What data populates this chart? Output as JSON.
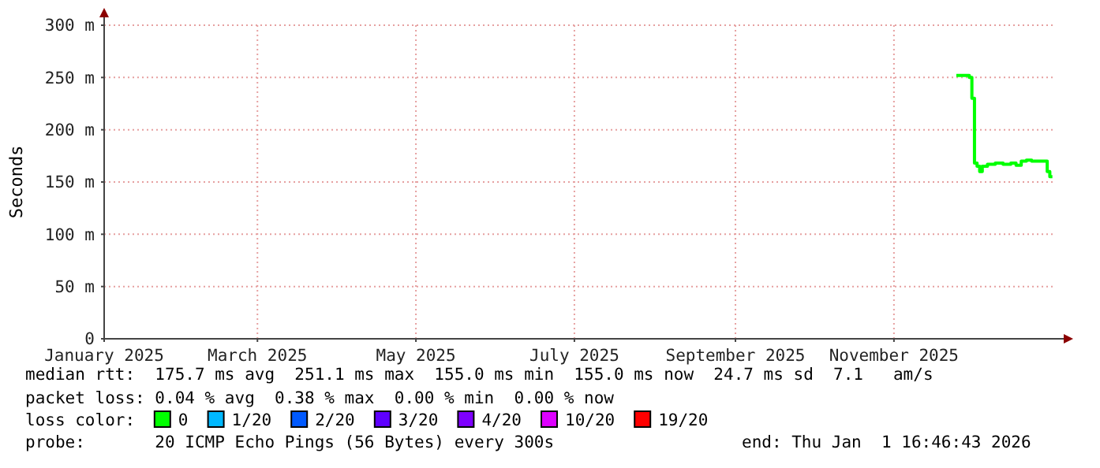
{
  "chart_data": {
    "type": "step",
    "ylabel": "Seconds",
    "x": [
      "2025-11-25",
      "2025-11-27",
      "2025-11-29",
      "2025-11-30",
      "2025-12-01",
      "2025-12-02",
      "2025-12-03",
      "2025-12-04",
      "2025-12-05",
      "2025-12-07",
      "2025-12-10",
      "2025-12-13",
      "2025-12-16",
      "2025-12-18",
      "2025-12-20",
      "2025-12-22",
      "2025-12-24",
      "2025-12-26",
      "2025-12-28",
      "2025-12-30",
      "2025-12-31",
      "2026-01-01"
    ],
    "series": [
      {
        "name": "0",
        "color": "#00ff00",
        "values": [
          252,
          252,
          252,
          250,
          230,
          168,
          165,
          160,
          165,
          167,
          168,
          167,
          168,
          166,
          170,
          171,
          170,
          170,
          170,
          160,
          155,
          155
        ]
      },
      {
        "name": "1/20",
        "color": "#00b8ff",
        "values": [
          null,
          null,
          null,
          null,
          null,
          null,
          null,
          null,
          null,
          null,
          null,
          null,
          null,
          null,
          null,
          null,
          null,
          null,
          null,
          null,
          null,
          null
        ]
      },
      {
        "name": "2/20",
        "color": "#0059ff",
        "values": [
          null,
          null,
          null,
          null,
          null,
          null,
          null,
          null,
          null,
          null,
          null,
          null,
          null,
          null,
          null,
          null,
          null,
          null,
          null,
          null,
          null,
          null
        ]
      },
      {
        "name": "3/20",
        "color": "#5e00ff",
        "values": [
          null,
          null,
          null,
          null,
          null,
          null,
          null,
          null,
          null,
          null,
          null,
          null,
          null,
          null,
          null,
          null,
          null,
          null,
          null,
          null,
          null,
          null
        ]
      },
      {
        "name": "4/20",
        "color": "#7e00ff",
        "values": [
          null,
          null,
          null,
          null,
          null,
          null,
          null,
          null,
          null,
          null,
          null,
          null,
          null,
          null,
          null,
          null,
          null,
          null,
          null,
          null,
          null,
          null
        ]
      },
      {
        "name": "10/20",
        "color": "#dd00ff",
        "values": [
          null,
          null,
          null,
          null,
          null,
          null,
          null,
          null,
          null,
          null,
          null,
          null,
          null,
          null,
          null,
          null,
          null,
          null,
          null,
          null,
          null,
          null
        ]
      },
      {
        "name": "19/20",
        "color": "#ff0000",
        "values": [
          null,
          null,
          null,
          null,
          null,
          null,
          null,
          null,
          null,
          null,
          null,
          null,
          null,
          null,
          null,
          null,
          null,
          null,
          null,
          null,
          null,
          null
        ]
      }
    ],
    "legend": "bottom",
    "legend_title": "loss color:",
    "xlim": [
      "2025-01-01",
      "2026-01-01T16:46"
    ],
    "xticks": [
      {
        "value": "2025-01-01",
        "label": "January 2025"
      },
      {
        "value": "2025-03-01",
        "label": "March 2025"
      },
      {
        "value": "2025-05-01",
        "label": "May 2025"
      },
      {
        "value": "2025-07-01",
        "label": "July 2025"
      },
      {
        "value": "2025-09-01",
        "label": "September 2025"
      },
      {
        "value": "2025-11-01",
        "label": "November 2025"
      }
    ],
    "ylim": [
      0,
      300
    ],
    "yticks": [
      0,
      {
        "value": 50,
        "label": "50 m"
      },
      {
        "value": 100,
        "label": "100 m"
      },
      {
        "value": 150,
        "label": "150 m"
      },
      {
        "value": 200,
        "label": "200 m"
      },
      {
        "value": 250,
        "label": "250 m"
      },
      {
        "value": 300,
        "label": "300 m"
      }
    ],
    "grid": true,
    "annotations": [
      "median rtt:  175.7 ms avg  251.1 ms max  155.0 ms min  155.0 ms now  24.7 ms sd  7.1   am/s",
      "packet loss: 0.04 % avg  0.38 % max  0.00 % min  0.00 % now",
      "probe:       20 ICMP Echo Pings (56 Bytes) every 300s",
      "end: Thu Jan  1 16:46:43 2026"
    ]
  }
}
